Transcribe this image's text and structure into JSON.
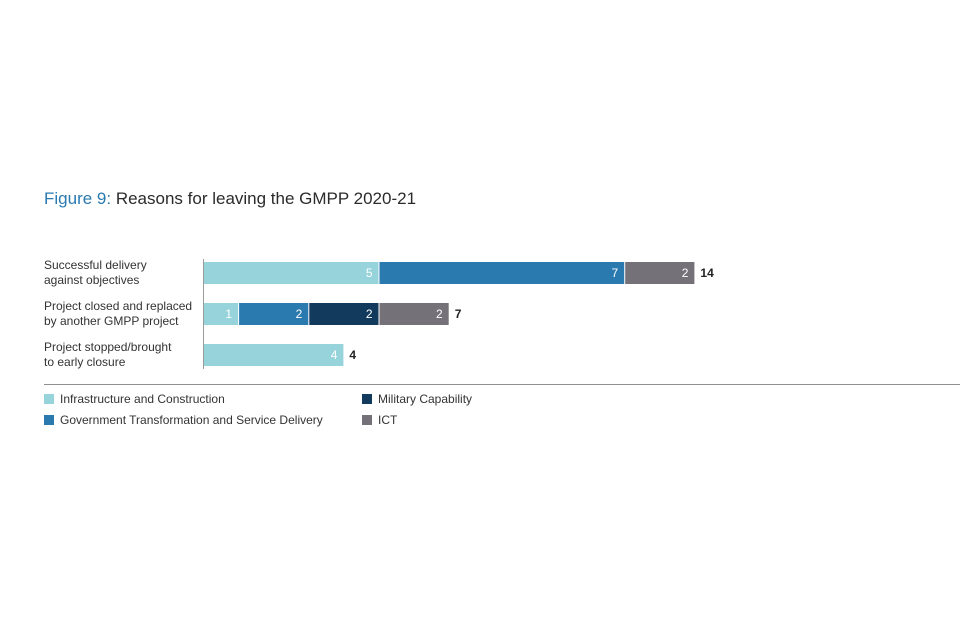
{
  "figure": {
    "label": "Figure 9:",
    "title": "Reasons for leaving the GMPP 2020-21"
  },
  "chart_data": {
    "type": "bar",
    "orientation": "horizontal",
    "stacked": true,
    "title": "Reasons for leaving the GMPP 2020-21",
    "categories": [
      [
        "Successful delivery",
        "against objectives"
      ],
      [
        "Project closed and replaced",
        "by another GMPP project"
      ],
      [
        "Project stopped/brought",
        "to early closure"
      ]
    ],
    "series": [
      {
        "name": "Infrastructure and Construction",
        "color": "#97d3db",
        "values": [
          5,
          1,
          4
        ]
      },
      {
        "name": "Government Transformation and Service Delivery",
        "color": "#2a7ab0",
        "values": [
          7,
          2,
          0
        ]
      },
      {
        "name": "Military Capability",
        "color": "#113a5c",
        "values": [
          0,
          2,
          0
        ]
      },
      {
        "name": "ICT",
        "color": "#757179",
        "values": [
          2,
          2,
          0
        ]
      }
    ],
    "totals": [
      14,
      7,
      4
    ],
    "xlim": [
      0,
      14
    ],
    "xlabel": "",
    "ylabel": "",
    "legend_position": "bottom"
  }
}
